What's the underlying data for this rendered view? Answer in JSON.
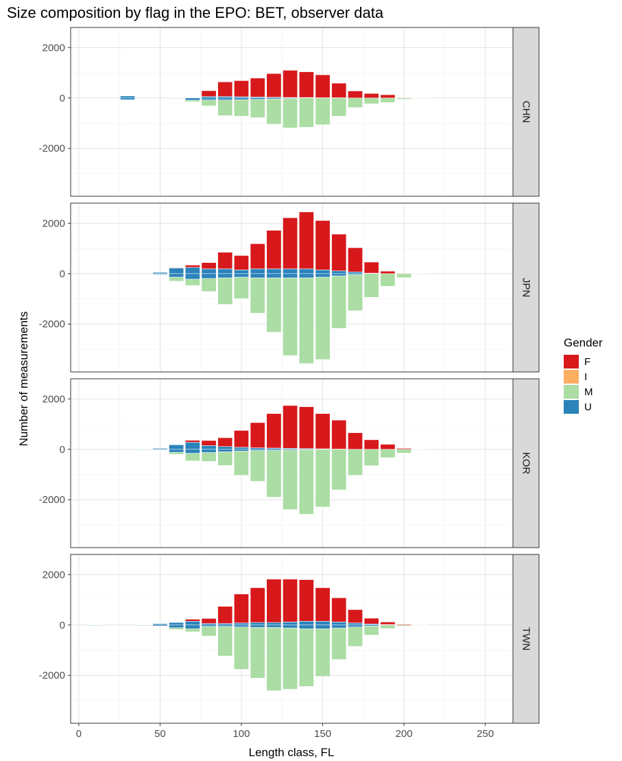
{
  "chart_data": {
    "type": "bar",
    "title": "Size composition by flag in the EPO: BET, observer data",
    "xlabel": "Length class, FL",
    "ylabel": "Number of measurements",
    "xlim": [
      -5,
      267
    ],
    "ylim": [
      -3900,
      2800
    ],
    "x_ticks": [
      0,
      50,
      100,
      150,
      200,
      250
    ],
    "y_ticks": [
      -2000,
      0,
      2000
    ],
    "grid": true,
    "legend": {
      "title": "Gender",
      "placement": "right",
      "entries": [
        {
          "key": "F",
          "label": "F",
          "color": "#d7191c"
        },
        {
          "key": "I",
          "label": "I",
          "color": "#fdae61"
        },
        {
          "key": "M",
          "label": "M",
          "color": "#abdda4"
        },
        {
          "key": "U",
          "label": "U",
          "color": "#2b83ba"
        }
      ]
    },
    "bar_width": 9,
    "panels": [
      {
        "flag": "CHN",
        "above": {
          "U": [
            [
              30,
              80
            ],
            [
              80,
              60
            ],
            [
              90,
              60
            ],
            [
              100,
              50
            ],
            [
              110,
              40
            ],
            [
              120,
              30
            ],
            [
              130,
              20
            ],
            [
              140,
              20
            ],
            [
              150,
              10
            ],
            [
              160,
              10
            ]
          ],
          "F": [
            [
              80,
              230
            ],
            [
              90,
              580
            ],
            [
              100,
              640
            ],
            [
              110,
              750
            ],
            [
              120,
              940
            ],
            [
              130,
              1080
            ],
            [
              140,
              1020
            ],
            [
              150,
              910
            ],
            [
              160,
              580
            ],
            [
              170,
              280
            ],
            [
              180,
              180
            ],
            [
              190,
              130
            ],
            [
              200,
              20
            ]
          ],
          "I": []
        },
        "below": {
          "U": [
            [
              30,
              -70
            ],
            [
              60,
              -20
            ],
            [
              70,
              -90
            ],
            [
              80,
              -80
            ],
            [
              90,
              -80
            ],
            [
              100,
              -70
            ],
            [
              110,
              -60
            ],
            [
              120,
              -40
            ],
            [
              130,
              -30
            ]
          ],
          "M": [
            [
              60,
              -20
            ],
            [
              70,
              -60
            ],
            [
              80,
              -230
            ],
            [
              90,
              -620
            ],
            [
              100,
              -650
            ],
            [
              110,
              -720
            ],
            [
              120,
              -1000
            ],
            [
              130,
              -1160
            ],
            [
              140,
              -1160
            ],
            [
              150,
              -1060
            ],
            [
              160,
              -720
            ],
            [
              170,
              -380
            ],
            [
              180,
              -230
            ],
            [
              190,
              -180
            ],
            [
              200,
              -50
            ],
            [
              210,
              -20
            ]
          ],
          "I": []
        }
      },
      {
        "flag": "JPN",
        "above": {
          "U": [
            [
              50,
              50
            ],
            [
              60,
              230
            ],
            [
              70,
              250
            ],
            [
              80,
              190
            ],
            [
              90,
              190
            ],
            [
              100,
              150
            ],
            [
              110,
              190
            ],
            [
              120,
              190
            ],
            [
              130,
              190
            ],
            [
              140,
              190
            ],
            [
              150,
              150
            ],
            [
              160,
              110
            ],
            [
              170,
              70
            ],
            [
              180,
              20
            ]
          ],
          "F": [
            [
              60,
              10
            ],
            [
              70,
              90
            ],
            [
              80,
              250
            ],
            [
              90,
              660
            ],
            [
              100,
              570
            ],
            [
              110,
              1000
            ],
            [
              120,
              1530
            ],
            [
              130,
              2030
            ],
            [
              140,
              2260
            ],
            [
              150,
              1960
            ],
            [
              160,
              1460
            ],
            [
              170,
              960
            ],
            [
              180,
              440
            ],
            [
              190,
              100
            ],
            [
              200,
              20
            ]
          ],
          "I": []
        },
        "below": {
          "U": [
            [
              50,
              -30
            ],
            [
              60,
              -140
            ],
            [
              70,
              -220
            ],
            [
              80,
              -190
            ],
            [
              90,
              -170
            ],
            [
              100,
              -140
            ],
            [
              110,
              -170
            ],
            [
              120,
              -170
            ],
            [
              130,
              -170
            ],
            [
              140,
              -170
            ],
            [
              150,
              -140
            ],
            [
              160,
              -90
            ],
            [
              170,
              -40
            ]
          ],
          "M": [
            [
              60,
              -160
            ],
            [
              70,
              -250
            ],
            [
              80,
              -520
            ],
            [
              90,
              -1050
            ],
            [
              100,
              -850
            ],
            [
              110,
              -1400
            ],
            [
              120,
              -2150
            ],
            [
              130,
              -3080
            ],
            [
              140,
              -3400
            ],
            [
              150,
              -3270
            ],
            [
              160,
              -2080
            ],
            [
              170,
              -1430
            ],
            [
              180,
              -940
            ],
            [
              190,
              -500
            ],
            [
              200,
              -160
            ],
            [
              210,
              -20
            ]
          ],
          "I": []
        }
      },
      {
        "flag": "KOR",
        "above": {
          "U": [
            [
              40,
              10
            ],
            [
              50,
              40
            ],
            [
              60,
              180
            ],
            [
              70,
              280
            ],
            [
              80,
              150
            ],
            [
              90,
              110
            ],
            [
              100,
              80
            ],
            [
              110,
              60
            ],
            [
              120,
              50
            ],
            [
              130,
              40
            ],
            [
              140,
              30
            ],
            [
              150,
              20
            ],
            [
              160,
              10
            ]
          ],
          "F": [
            [
              70,
              80
            ],
            [
              80,
              200
            ],
            [
              90,
              350
            ],
            [
              100,
              670
            ],
            [
              110,
              1000
            ],
            [
              120,
              1370
            ],
            [
              130,
              1700
            ],
            [
              140,
              1660
            ],
            [
              150,
              1400
            ],
            [
              160,
              1150
            ],
            [
              170,
              660
            ],
            [
              180,
              380
            ],
            [
              190,
              200
            ],
            [
              200,
              40
            ],
            [
              210,
              10
            ]
          ],
          "I": []
        },
        "below": {
          "U": [
            [
              40,
              -10
            ],
            [
              50,
              -20
            ],
            [
              60,
              -120
            ],
            [
              70,
              -160
            ],
            [
              80,
              -130
            ],
            [
              90,
              -100
            ],
            [
              100,
              -70
            ],
            [
              110,
              -50
            ],
            [
              120,
              -40
            ],
            [
              130,
              -30
            ],
            [
              140,
              -20
            ]
          ],
          "M": [
            [
              60,
              -80
            ],
            [
              70,
              -300
            ],
            [
              80,
              -350
            ],
            [
              90,
              -540
            ],
            [
              100,
              -960
            ],
            [
              110,
              -1220
            ],
            [
              120,
              -1860
            ],
            [
              130,
              -2360
            ],
            [
              140,
              -2560
            ],
            [
              150,
              -2290
            ],
            [
              160,
              -1610
            ],
            [
              170,
              -1030
            ],
            [
              180,
              -650
            ],
            [
              190,
              -330
            ],
            [
              200,
              -150
            ],
            [
              210,
              -20
            ]
          ],
          "I": []
        }
      },
      {
        "flag": "TWN",
        "above": {
          "U": [
            [
              10,
              10
            ],
            [
              40,
              10
            ],
            [
              50,
              50
            ],
            [
              60,
              100
            ],
            [
              70,
              150
            ],
            [
              80,
              60
            ],
            [
              90,
              60
            ],
            [
              100,
              80
            ],
            [
              110,
              100
            ],
            [
              120,
              100
            ],
            [
              130,
              120
            ],
            [
              140,
              150
            ],
            [
              150,
              150
            ],
            [
              160,
              120
            ],
            [
              170,
              80
            ],
            [
              180,
              40
            ],
            [
              190,
              20
            ]
          ],
          "F": [
            [
              70,
              80
            ],
            [
              80,
              200
            ],
            [
              90,
              680
            ],
            [
              100,
              1150
            ],
            [
              110,
              1380
            ],
            [
              120,
              1720
            ],
            [
              130,
              1700
            ],
            [
              140,
              1650
            ],
            [
              150,
              1330
            ],
            [
              160,
              960
            ],
            [
              170,
              530
            ],
            [
              180,
              230
            ],
            [
              190,
              100
            ],
            [
              200,
              30
            ],
            [
              210,
              10
            ]
          ],
          "I": []
        },
        "below": {
          "U": [
            [
              10,
              -10
            ],
            [
              40,
              -20
            ],
            [
              50,
              -40
            ],
            [
              60,
              -110
            ],
            [
              70,
              -150
            ],
            [
              80,
              -60
            ],
            [
              90,
              -60
            ],
            [
              100,
              -80
            ],
            [
              110,
              -100
            ],
            [
              120,
              -100
            ],
            [
              130,
              -120
            ],
            [
              140,
              -150
            ],
            [
              150,
              -150
            ],
            [
              160,
              -120
            ],
            [
              170,
              -80
            ],
            [
              180,
              -40
            ]
          ],
          "M": [
            [
              60,
              -70
            ],
            [
              70,
              -120
            ],
            [
              80,
              -380
            ],
            [
              90,
              -1170
            ],
            [
              100,
              -1680
            ],
            [
              110,
              -2010
            ],
            [
              120,
              -2510
            ],
            [
              130,
              -2430
            ],
            [
              140,
              -2290
            ],
            [
              150,
              -1890
            ],
            [
              160,
              -1250
            ],
            [
              170,
              -770
            ],
            [
              180,
              -360
            ],
            [
              190,
              -140
            ],
            [
              200,
              -40
            ],
            [
              210,
              -10
            ]
          ],
          "I": []
        }
      }
    ]
  }
}
